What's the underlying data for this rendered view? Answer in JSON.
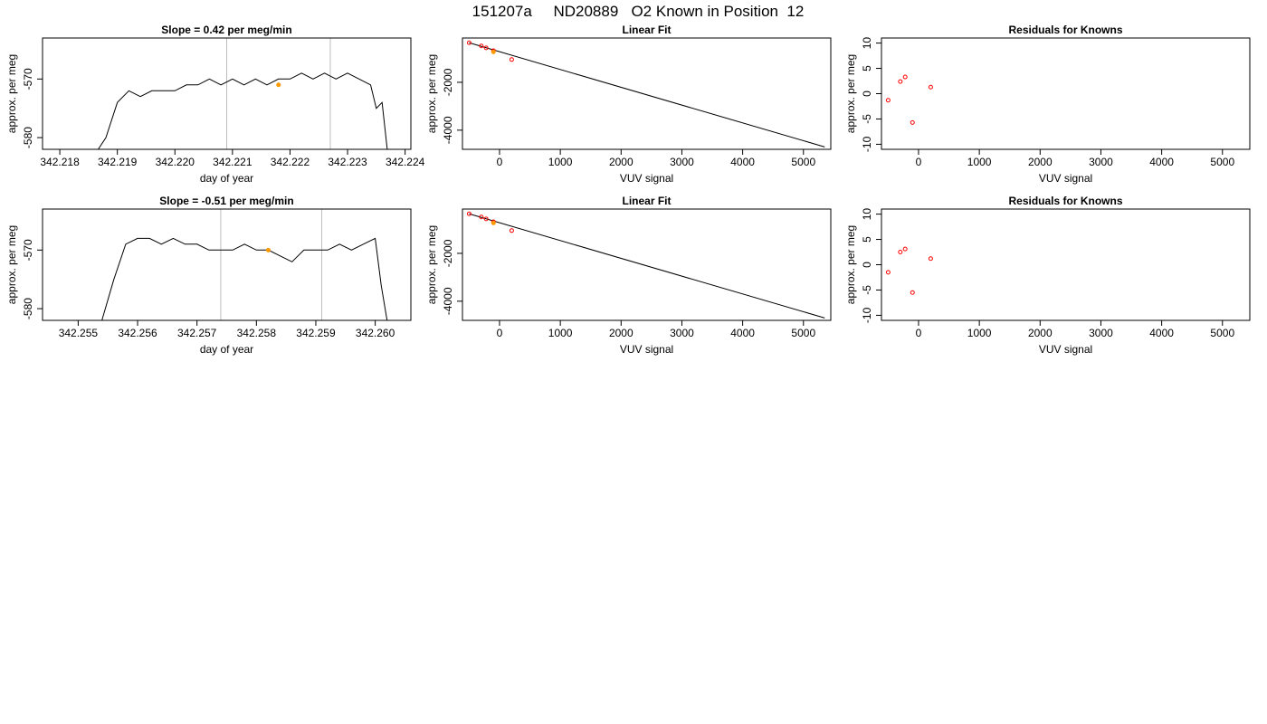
{
  "figure_title": "151207a     ND20889   O2 Known in Position  12",
  "colors": {
    "line": "#000000",
    "highlight": "#ff9900",
    "vline": "#bebebe",
    "residual": "#ff0000",
    "fit": "#000000"
  },
  "chart_data": [
    {
      "type": "line",
      "title": "Slope =  0.42  per meg/min",
      "xlabel": "day of year",
      "ylabel": "approx. per meg",
      "xlim": [
        342.2177,
        342.2241
      ],
      "ylim": [
        -582,
        -563
      ],
      "xticks": [
        342.218,
        342.219,
        342.22,
        342.221,
        342.222,
        342.223,
        342.224
      ],
      "xtick_labels": [
        "342.218",
        "342.219",
        "342.220",
        "342.221",
        "342.222",
        "342.223",
        "342.224"
      ],
      "yticks": [
        -580,
        -570
      ],
      "ytick_labels": [
        "-580",
        "-570"
      ],
      "vlines": [
        342.2209,
        342.2227
      ],
      "series": [
        {
          "x": [
            342.2186,
            342.2188,
            342.219,
            342.2192,
            342.2194,
            342.2196,
            342.2198,
            342.22,
            342.2202,
            342.2204,
            342.2206,
            342.2208,
            342.221,
            342.2212,
            342.2214,
            342.2216,
            342.2218,
            342.222,
            342.2222,
            342.2224,
            342.2226,
            342.2228,
            342.223,
            342.2232,
            342.2234,
            342.2235,
            342.2236,
            342.2237
          ],
          "values": [
            -583,
            -580,
            -574,
            -572,
            -573,
            -572,
            -572,
            -572,
            -571,
            -571,
            -570,
            -571,
            -570,
            -571,
            -570,
            -571,
            -570,
            -570,
            -569,
            -570,
            -569,
            -570,
            -569,
            -570,
            -571,
            -575,
            -574,
            -583
          ]
        }
      ],
      "highlight_point": {
        "x": 342.2218,
        "y": -571
      }
    },
    {
      "type": "scatter",
      "title": "Linear Fit",
      "xlabel": "VUV signal",
      "ylabel": "approx. per meg",
      "xlim": [
        -610,
        5450
      ],
      "ylim": [
        -4800,
        -150
      ],
      "xticks": [
        0,
        1000,
        2000,
        3000,
        4000,
        5000
      ],
      "xtick_labels": [
        "0",
        "1000",
        "2000",
        "3000",
        "4000",
        "5000"
      ],
      "yticks": [
        -4000,
        -2000
      ],
      "ytick_labels": [
        "-4000",
        "-2000"
      ],
      "points": {
        "x": [
          -500,
          -300,
          -220,
          -100,
          200
        ],
        "y": [
          -350,
          -480,
          -560,
          -680,
          -1050
        ]
      },
      "highlight_point": {
        "x": -100,
        "y": -730
      },
      "fit_line": {
        "x": [
          -500,
          5350
        ],
        "y": [
          -350,
          -4700
        ]
      }
    },
    {
      "type": "scatter",
      "title": "Residuals for Knowns",
      "xlabel": "VUV signal",
      "ylabel": "approx. per meg",
      "xlim": [
        -610,
        5450
      ],
      "ylim": [
        -11,
        11
      ],
      "xticks": [
        0,
        1000,
        2000,
        3000,
        4000,
        5000
      ],
      "xtick_labels": [
        "0",
        "1000",
        "2000",
        "3000",
        "4000",
        "5000"
      ],
      "yticks": [
        -10,
        -5,
        0,
        5,
        10
      ],
      "ytick_labels": [
        "-10",
        "-5",
        "0",
        "5",
        "10"
      ],
      "points": {
        "x": [
          -500,
          -300,
          -220,
          -100,
          200
        ],
        "y": [
          -1.3,
          2.4,
          3.3,
          -5.7,
          1.3
        ]
      }
    },
    {
      "type": "line",
      "title": "Slope =  -0.51  per meg/min",
      "xlabel": "day of year",
      "ylabel": "approx. per meg",
      "xlim": [
        342.2544,
        342.2606
      ],
      "ylim": [
        -582,
        -563
      ],
      "xticks": [
        342.255,
        342.256,
        342.257,
        342.258,
        342.259,
        342.26
      ],
      "xtick_labels": [
        "342.255",
        "342.256",
        "342.257",
        "342.258",
        "342.259",
        "342.260"
      ],
      "yticks": [
        -580,
        -570
      ],
      "ytick_labels": [
        "-580",
        "-570"
      ],
      "vlines": [
        342.2574,
        342.2591
      ],
      "series": [
        {
          "x": [
            342.2554,
            342.2556,
            342.2558,
            342.256,
            342.2562,
            342.2564,
            342.2566,
            342.2568,
            342.257,
            342.2572,
            342.2574,
            342.2576,
            342.2578,
            342.258,
            342.2582,
            342.2584,
            342.2586,
            342.2588,
            342.259,
            342.2592,
            342.2594,
            342.2596,
            342.2598,
            342.26,
            342.2601,
            342.2602
          ],
          "values": [
            -582,
            -575,
            -569,
            -568,
            -568,
            -569,
            -568,
            -569,
            -569,
            -570,
            -570,
            -570,
            -569,
            -570,
            -570,
            -571,
            -572,
            -570,
            -570,
            -570,
            -569,
            -570,
            -569,
            -568,
            -576,
            -582
          ]
        }
      ],
      "highlight_point": {
        "x": 342.2582,
        "y": -570
      }
    },
    {
      "type": "scatter",
      "title": "Linear Fit",
      "xlabel": "VUV signal",
      "ylabel": "approx. per meg",
      "xlim": [
        -610,
        5450
      ],
      "ylim": [
        -4800,
        -150
      ],
      "xticks": [
        0,
        1000,
        2000,
        3000,
        4000,
        5000
      ],
      "xtick_labels": [
        "0",
        "1000",
        "2000",
        "3000",
        "4000",
        "5000"
      ],
      "yticks": [
        -4000,
        -2000
      ],
      "ytick_labels": [
        "-4000",
        "-2000"
      ],
      "points": {
        "x": [
          -500,
          -300,
          -220,
          -100,
          200
        ],
        "y": [
          -350,
          -480,
          -560,
          -680,
          -1050
        ]
      },
      "highlight_point": {
        "x": -100,
        "y": -730
      },
      "fit_line": {
        "x": [
          -500,
          5350
        ],
        "y": [
          -350,
          -4700
        ]
      }
    },
    {
      "type": "scatter",
      "title": "Residuals for Knowns",
      "xlabel": "VUV signal",
      "ylabel": "approx. per meg",
      "xlim": [
        -610,
        5450
      ],
      "ylim": [
        -11,
        11
      ],
      "xticks": [
        0,
        1000,
        2000,
        3000,
        4000,
        5000
      ],
      "xtick_labels": [
        "0",
        "1000",
        "2000",
        "3000",
        "4000",
        "5000"
      ],
      "yticks": [
        -10,
        -5,
        0,
        5,
        10
      ],
      "ytick_labels": [
        "-10",
        "-5",
        "0",
        "5",
        "10"
      ],
      "points": {
        "x": [
          -500,
          -300,
          -220,
          -100,
          200
        ],
        "y": [
          -1.5,
          2.5,
          3.1,
          -5.5,
          1.2
        ]
      }
    }
  ]
}
